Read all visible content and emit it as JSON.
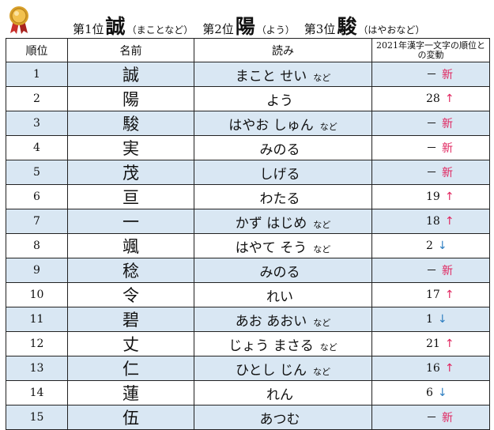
{
  "heading": [
    {
      "rank": "第1位",
      "kanji": "誠",
      "reading": "（まことなど）"
    },
    {
      "rank": "第2位",
      "kanji": "陽",
      "reading": "（よう）"
    },
    {
      "rank": "第3位",
      "kanji": "駿",
      "reading": "（はやおなど）"
    }
  ],
  "columns": {
    "rank": "順位",
    "name": "名前",
    "reading": "読み",
    "change": "2021年漢字一文字の順位との変動"
  },
  "colors": {
    "stripe": "#d9e7f3",
    "up": "#e0245e",
    "down": "#2f7fc1",
    "new": "#e0245e",
    "medal": "#d8a02a"
  },
  "rows": [
    {
      "rank": "1",
      "name": "誠",
      "reading": "まこと せい",
      "note": "など",
      "prev": "－",
      "mark": "新",
      "markType": "new"
    },
    {
      "rank": "2",
      "name": "陽",
      "reading": "よう",
      "note": "",
      "prev": "28",
      "mark": "↑",
      "markType": "up"
    },
    {
      "rank": "3",
      "name": "駿",
      "reading": "はやお しゅん",
      "note": "など",
      "prev": "－",
      "mark": "新",
      "markType": "new"
    },
    {
      "rank": "4",
      "name": "実",
      "reading": "みのる",
      "note": "",
      "prev": "－",
      "mark": "新",
      "markType": "new"
    },
    {
      "rank": "5",
      "name": "茂",
      "reading": "しげる",
      "note": "",
      "prev": "－",
      "mark": "新",
      "markType": "new"
    },
    {
      "rank": "6",
      "name": "亘",
      "reading": "わたる",
      "note": "",
      "prev": "19",
      "mark": "↑",
      "markType": "up"
    },
    {
      "rank": "7",
      "name": "一",
      "reading": "かず はじめ",
      "note": "など",
      "prev": "18",
      "mark": "↑",
      "markType": "up"
    },
    {
      "rank": "8",
      "name": "颯",
      "reading": "はやて そう",
      "note": "など",
      "prev": "2",
      "mark": "↓",
      "markType": "down"
    },
    {
      "rank": "9",
      "name": "稔",
      "reading": "みのる",
      "note": "",
      "prev": "－",
      "mark": "新",
      "markType": "new"
    },
    {
      "rank": "10",
      "name": "令",
      "reading": "れい",
      "note": "",
      "prev": "17",
      "mark": "↑",
      "markType": "up"
    },
    {
      "rank": "11",
      "name": "碧",
      "reading": "あお あおい",
      "note": "など",
      "prev": "1",
      "mark": "↓",
      "markType": "down"
    },
    {
      "rank": "12",
      "name": "丈",
      "reading": "じょう まさる",
      "note": "など",
      "prev": "21",
      "mark": "↑",
      "markType": "up"
    },
    {
      "rank": "13",
      "name": "仁",
      "reading": "ひとし じん",
      "note": "など",
      "prev": "16",
      "mark": "↑",
      "markType": "up"
    },
    {
      "rank": "14",
      "name": "蓮",
      "reading": "れん",
      "note": "",
      "prev": "6",
      "mark": "↓",
      "markType": "down"
    },
    {
      "rank": "15",
      "name": "伍",
      "reading": "あつむ",
      "note": "",
      "prev": "－",
      "mark": "新",
      "markType": "new"
    }
  ]
}
